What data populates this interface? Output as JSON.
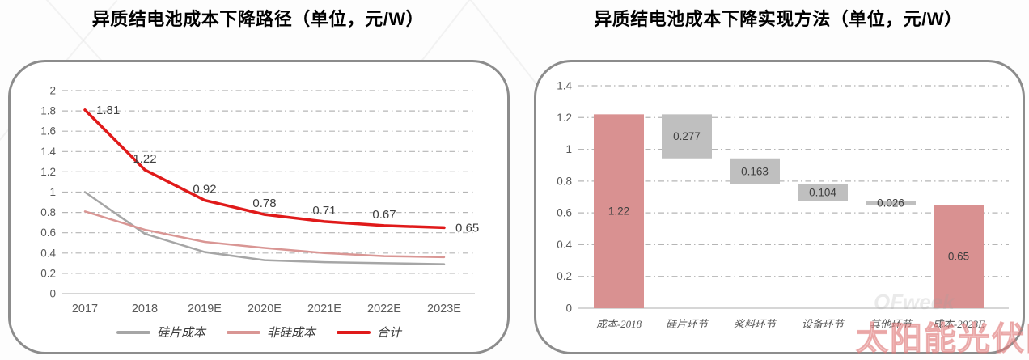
{
  "watermark": {
    "text_cn": "太阳能光伏网",
    "text_en": "OFweek"
  },
  "left_chart": {
    "title": "异质结电池成本下降路径（单位，元/W）"
  },
  "right_chart": {
    "title": "异质结电池成本下降实现方法（单位，元/W）"
  },
  "chart_data": [
    {
      "type": "line",
      "title": "异质结电池成本下降路径（单位，元/W）",
      "unit": "元/W",
      "categories": [
        "2017",
        "2018",
        "2019E",
        "2020E",
        "2021E",
        "2022E",
        "2023E"
      ],
      "series": [
        {
          "name": "硅片成本",
          "color": "#a6a6a6",
          "width": 2.5,
          "values": [
            1.0,
            0.59,
            0.41,
            0.33,
            0.31,
            0.3,
            0.29
          ]
        },
        {
          "name": "非硅成本",
          "color": "#d99694",
          "width": 2.5,
          "values": [
            0.81,
            0.63,
            0.51,
            0.45,
            0.4,
            0.37,
            0.36
          ]
        },
        {
          "name": "合计",
          "color": "#e01a1a",
          "width": 3.5,
          "values": [
            1.81,
            1.22,
            0.92,
            0.78,
            0.71,
            0.67,
            0.65
          ],
          "labels": [
            "1.81",
            "1.22",
            "0.92",
            "0.78",
            "0.71",
            "0.67",
            "0.65"
          ]
        }
      ],
      "ylim": [
        0,
        2
      ],
      "yticks": [
        "0",
        "0.2",
        "0.4",
        "0.6",
        "0.8",
        "1",
        "1.2",
        "1.4",
        "1.6",
        "1.8",
        "2"
      ],
      "grid": "dash-dot",
      "legend_position": "bottom"
    },
    {
      "type": "bar",
      "subtype": "waterfall",
      "title": "异质结电池成本下降实现方法（单位，元/W）",
      "unit": "元/W",
      "categories": [
        "成本-2018",
        "硅片环节",
        "浆料环节",
        "设备环节",
        "其他环节",
        "成本-2023E"
      ],
      "bars": [
        {
          "category": "成本-2018",
          "base": 0,
          "top": 1.22,
          "value": 1.22,
          "label": "1.22",
          "color": "#d99191"
        },
        {
          "category": "硅片环节",
          "base": 0.943,
          "top": 1.22,
          "value": 0.277,
          "label": "0.277",
          "color": "#bfbfbf"
        },
        {
          "category": "浆料环节",
          "base": 0.78,
          "top": 0.943,
          "value": 0.163,
          "label": "0.163",
          "color": "#bfbfbf"
        },
        {
          "category": "设备环节",
          "base": 0.676,
          "top": 0.78,
          "value": 0.104,
          "label": "0.104",
          "color": "#bfbfbf"
        },
        {
          "category": "其他环节",
          "base": 0.65,
          "top": 0.676,
          "value": 0.026,
          "label": "0.026",
          "color": "#bfbfbf"
        },
        {
          "category": "成本-2023E",
          "base": 0,
          "top": 0.65,
          "value": 0.65,
          "label": "0.65",
          "color": "#d99191"
        }
      ],
      "ylim": [
        0,
        1.4
      ],
      "yticks": [
        "0",
        "0.2",
        "0.4",
        "0.6",
        "0.8",
        "1",
        "1.2",
        "1.4"
      ],
      "grid": "dash-dot",
      "legend_position": "none"
    }
  ],
  "colors": {
    "grid": "#b5b5b5",
    "axis": "#c9c9c9",
    "tick_text": "#595959",
    "data_label": "#3f3f3f",
    "card_border": "#8c8c8c"
  }
}
